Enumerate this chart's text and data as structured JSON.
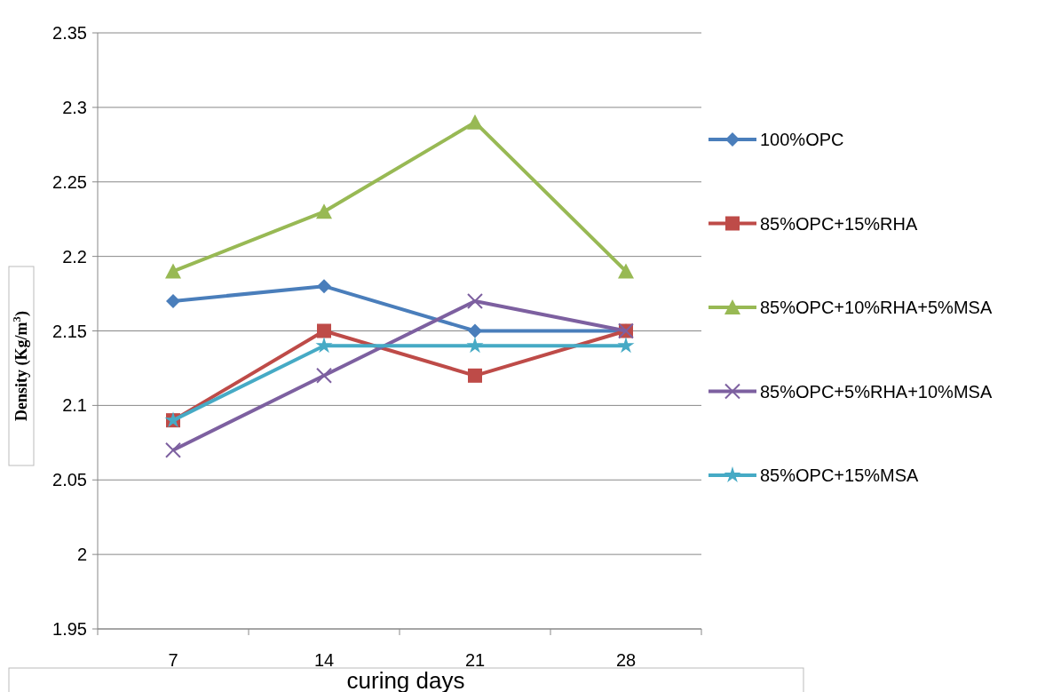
{
  "chart_data": {
    "type": "line",
    "xlabel": "curing days",
    "ylabel": "Density (Kg/m$^{3}$)",
    "categories": [
      "7",
      "14",
      "21",
      "28"
    ],
    "ylim": [
      1.95,
      2.35
    ],
    "yticks": [
      1.95,
      2,
      2.05,
      2.1,
      2.15,
      2.2,
      2.25,
      2.3,
      2.35
    ],
    "grid": "y",
    "legend": "right",
    "series": [
      {
        "name": "100%OPC",
        "color": "#4a7ebb",
        "marker": "diamond",
        "values": [
          2.17,
          2.18,
          2.15,
          2.15
        ]
      },
      {
        "name": "85%OPC+15%RHA",
        "color": "#be4b48",
        "marker": "square",
        "values": [
          2.09,
          2.15,
          2.12,
          2.15
        ]
      },
      {
        "name": "85%OPC+10%RHA+5%MSA",
        "color": "#98b954",
        "marker": "triangle",
        "values": [
          2.19,
          2.23,
          2.29,
          2.19
        ]
      },
      {
        "name": "85%OPC+5%RHA+10%MSA",
        "color": "#7d60a0",
        "marker": "cross",
        "values": [
          2.07,
          2.12,
          2.17,
          2.15
        ]
      },
      {
        "name": "85%OPC+15%MSA",
        "color": "#46aac5",
        "marker": "star",
        "values": [
          2.09,
          2.14,
          2.14,
          2.14
        ]
      }
    ]
  }
}
